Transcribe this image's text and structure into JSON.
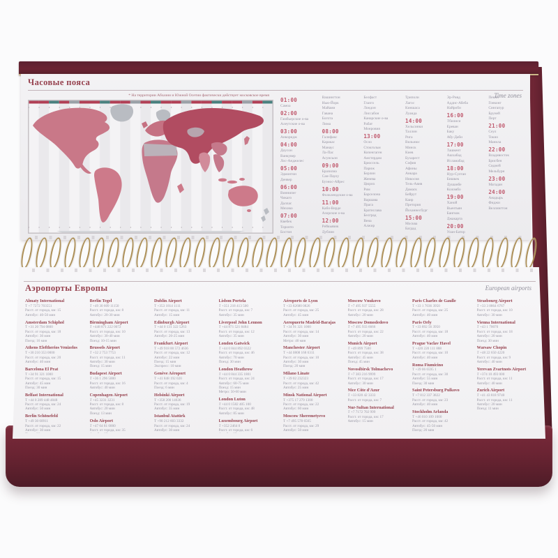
{
  "timezones": {
    "title": "Часовые пояса",
    "title_en": "Time zones",
    "note": "* На территории Абхазии и Южной Осетии фактически действует московское время",
    "columns": [
      [
        "01:00",
        "Самоа",
        "02:00",
        "Гамбьерские о-ва",
        "Алеутские о-ва",
        "03:00",
        "Анкоридж",
        "04:00",
        "Доусон",
        "Ванкувер",
        "Лос-Анджелес",
        "05:00",
        "Эдмонтон",
        "Денвер",
        "06:00",
        "Виннипег",
        "Чикаго",
        "Даллас",
        "Мехико",
        "07:00",
        "Квебек",
        "Торонто",
        "Бостон"
      ],
      [
        "Вашингтон",
        "Нью-Йорк",
        "Майами",
        "Гавана",
        "Богота",
        "Лима",
        "08:00",
        "Галифакс",
        "Каракас",
        "Манаус",
        "Ла-Пас",
        "Асунсьон",
        "09:00",
        "Бразилиа",
        "Сан-Паулу",
        "Буэнос-Айрес",
        "10:00",
        "Фолклендские о-ва",
        "11:00",
        "Кабо-Верде",
        "Азорские о-ва",
        "12:00",
        "Рейкьявик",
        "Дублин"
      ],
      [
        "Белфаст",
        "Глазго",
        "Лондон",
        "Лиссабон",
        "Канарские о-ва",
        "Рабат",
        "Монровия",
        "13:00",
        "Осло",
        "Стокгольм",
        "Копенгаген",
        "Амстердам",
        "Брюссель",
        "Париж",
        "Берлин",
        "Женева",
        "Цюрих",
        "Рим",
        "Барселона",
        "Варшава",
        "Прага",
        "Братислава",
        "Белград",
        "Вена",
        "Алжир"
      ],
      [
        "Триполи",
        "Лагос",
        "Киншаса",
        "Луанда",
        "14:00",
        "Хельсинки",
        "Таллин",
        "Рига",
        "Вильнюс",
        "Минск",
        "Киев",
        "Бухарест",
        "София",
        "Афины",
        "Анкара",
        "Никосия",
        "Тель-Авив",
        "Дамаск",
        "Бейрут",
        "Каир",
        "Претория",
        "Йоханнесбург",
        "15:00",
        "Москва",
        "Багдад"
      ],
      [
        "Эр-Рияд",
        "Аддис-Абеба",
        "Найроби",
        "16:00",
        "Тбилиси",
        "Ереван",
        "Баку",
        "Абу-Даби",
        "17:00",
        "Ташкент",
        "Ашхабад",
        "Исламабад",
        "18:00",
        "Нур-Султан",
        "Бишкек",
        "Душанбе",
        "Коломбо",
        "19:00",
        "Ханой",
        "Вьентьян",
        "Бангкок",
        "Джакарта",
        "20:00",
        "Улан-Батор"
      ],
      [
        "Пекин",
        "Гонконг",
        "Сингапур",
        "Бруней",
        "Перт",
        "21:00",
        "Сеул",
        "Токио",
        "Манила",
        "22:00",
        "Владивосток",
        "Брисбен",
        "Сидней",
        "Мельбурн",
        "23:00",
        "Магадан",
        "24:00",
        "Анадырь",
        "Фиджи",
        "Веллингтон"
      ]
    ]
  },
  "airports": {
    "title": "Аэропорты Европы",
    "title_en": "European airports",
    "columns": [
      [
        {
          "name": "Almaty International",
          "lines": [
            "Т +7 7272 703551",
            "Расст. от города, км: 15",
            "Автобус: 40-50 мин"
          ]
        },
        {
          "name": "Amsterdam Schiphol",
          "lines": [
            "Т +31 20 794 0800",
            "Расст. от города, км: 18",
            "Автобус: 30 мин",
            "Поезд: 16 мин"
          ]
        },
        {
          "name": "Athens Eleftherios Venizelos",
          "lines": [
            "Т +30 210 353 0000",
            "Расст. от города, км: 20",
            "Автобус: 40 мин"
          ]
        },
        {
          "name": "Barcelona El Prat",
          "lines": [
            "Т +34 91 321 1000",
            "Расст. от города, км: 15",
            "Автобус: 45 мин",
            "Поезд: 30 мин"
          ]
        },
        {
          "name": "Belfast International",
          "lines": [
            "Т +44 0 289 448 4848",
            "Расст. от города, км: 24",
            "Автобус: 50 мин"
          ]
        },
        {
          "name": "Berlin Schönefeld",
          "lines": [
            "Т +49 30 60911",
            "Расст. от города, км: 22",
            "Автобус: 30 мин",
            "Поезд: 30 мин"
          ]
        }
      ],
      [
        {
          "name": "Berlin Tegel",
          "lines": [
            "Т +49 30 609 11150",
            "Расст. от города, км: 8",
            "Автобус: 20-30 мин"
          ]
        },
        {
          "name": "Birmingham Airport",
          "lines": [
            "Т +448 871 222 0072",
            "Расст. от города, км: 10",
            "Автобус: 30-40 мин",
            "Поезд: 10-15 мин"
          ]
        },
        {
          "name": "Brussels Airport",
          "lines": [
            "Т +32 2 753 7753",
            "Расст. от города, км: 11",
            "Автобус: 30 мин",
            "Поезд: 15 мин"
          ]
        },
        {
          "name": "Budapest Airport",
          "lines": [
            "Т +36 1 296 5000",
            "Расст. от города, км: 16",
            "Автобус: 40 мин"
          ]
        },
        {
          "name": "Copenhagen Airport",
          "lines": [
            "Т +45 3231 3231",
            "Расст. от города, км: 8",
            "Автобус: 20 мин",
            "Поезд: 13 мин"
          ]
        },
        {
          "name": "Oslo Airport",
          "lines": [
            "Т +47 64 81 0000",
            "Расст. от города, км: 35",
            "Автобус: 35 мин",
            "Поезд: 10 мин"
          ]
        }
      ],
      [
        {
          "name": "Dublin Airport",
          "lines": [
            "Т +353 1814 1111",
            "Расст. от города, км: 11",
            "Автобус: 15 мин"
          ]
        },
        {
          "name": "Edinburgh Airport",
          "lines": [
            "Т +44 0 131 322 5263",
            "Расст. от города, км: 13",
            "Автобус: 20-25 мин"
          ]
        },
        {
          "name": "Frankfurt Airport",
          "lines": [
            "Т +49 918 00 572 4636",
            "Расст. от города, км: 12",
            "Автобус: 22 мин",
            "Поезд: 15 мин",
            "Экспресс: 10 мин"
          ]
        },
        {
          "name": "Genève Aéroport",
          "lines": [
            "Т +41 848 192 020",
            "Расст. от города, км: 4",
            "Поезд: 6 мин"
          ]
        },
        {
          "name": "Helsinki Airport",
          "lines": [
            "Т +358 200 14636",
            "Расст. от города, км: 19",
            "Автобус: 35 мин"
          ]
        },
        {
          "name": "Istanbul Atatürk",
          "lines": [
            "Т +90 212 603 3332",
            "Расст. от города, км: 24",
            "Автобус: 30 мин"
          ]
        }
      ],
      [
        {
          "name": "Lisbon Portela",
          "lines": [
            "Т +351 218 413 500",
            "Расст. от города, км: 7",
            "Автобус: 35 мин"
          ]
        },
        {
          "name": "Liverpool John Lennon",
          "lines": [
            "Т +44 871 521 8484",
            "Расст. от города, км: 12",
            "Автобус: 35 мин"
          ]
        },
        {
          "name": "London Gatwick",
          "lines": [
            "Т +44 0 844 892 0322",
            "Расст. от города, км: 46",
            "Автобус: 70 мин",
            "Поезд: 30 мин"
          ]
        },
        {
          "name": "London Heathrow",
          "lines": [
            "Т +44 0 844 335 1801",
            "Расст. от города, км: 24",
            "Автобус: 60-75 мин",
            "Поезд: 15 мин",
            "Метро: 50-60 мин"
          ]
        },
        {
          "name": "London Luton",
          "lines": [
            "Т +44 0 1582 405 100",
            "Расст. от города, км: 48",
            "Автобус: 85 мин"
          ]
        },
        {
          "name": "Luxembourg Airport",
          "lines": [
            "Т +352 2464 0",
            "Расст. от города, км: 6",
            "Автобус: 25 мин"
          ]
        }
      ],
      [
        {
          "name": "Aéroports de Lyon",
          "lines": [
            "Т +33 82680 0826",
            "Расст. от города, км: 25",
            "Автобус: 45 мин"
          ]
        },
        {
          "name": "Aeropuerto Madrid-Barajas",
          "lines": [
            "Т +34 91 321 1000",
            "Расст. от города, км: 14",
            "Автобус: 30 мин",
            "Метро: 40 мин"
          ]
        },
        {
          "name": "Manchester Airport",
          "lines": [
            "Т +44 0808 168 6311",
            "Расст. от города, км: 10",
            "Автобус: 30 мин",
            "Поезд: 20 мин"
          ]
        },
        {
          "name": "Milano Linate",
          "lines": [
            "Т +39 02 232323",
            "Расст. от города, км: 42",
            "Автобус: 25 мин"
          ]
        },
        {
          "name": "Minsk National Airport",
          "lines": [
            "Т +375 17 279 1300",
            "Расст. от города, км: 22",
            "Автобус: 60 мин"
          ]
        },
        {
          "name": "Moscow Sheremetyevo",
          "lines": [
            "Т +7 495 578 6565",
            "Расст. от города, км: 29",
            "Автобус: 50 мин"
          ]
        }
      ],
      [
        {
          "name": "Moscow Vnukovo",
          "lines": [
            "Т +7 495 937 5555",
            "Расст. от города, км: 28",
            "Автобус: 20 мин"
          ]
        },
        {
          "name": "Moscow Domodedovo",
          "lines": [
            "Т +7 495 933 6666",
            "Расст. от города, км: 22",
            "Автобус: 20 мин"
          ]
        },
        {
          "name": "Munich Airport",
          "lines": [
            "Т +49 899 7500",
            "Расст. от города, км: 38",
            "Автобус: 45 мин",
            "Поезд: 45 мин"
          ]
        },
        {
          "name": "Novosibirsk Tolmachevo",
          "lines": [
            "Т +7 383 216 9999",
            "Расст. от города, км: 17",
            "Автобус: 30 мин"
          ]
        },
        {
          "name": "Nice Côte d'Azur",
          "lines": [
            "Т +33 820 42 3333",
            "Расст. от города, км: 7"
          ]
        },
        {
          "name": "Nur-Sultan International",
          "lines": [
            "Т +7 7172 702 999",
            "Расст. от города, км: 17",
            "Автобус: 15 мин"
          ]
        }
      ],
      [
        {
          "name": "Paris Charles de Gaulle",
          "lines": [
            "Т +33 1 7036 3950",
            "Расст. от города, км: 25",
            "Автобус: 40 мин"
          ]
        },
        {
          "name": "Paris Orly",
          "lines": [
            "Т +33 892 56 3950",
            "Расст. от города, км: 18",
            "Автобус: 40 мин"
          ]
        },
        {
          "name": "Prague Vaclav Havel",
          "lines": [
            "Т +420 220 111 888",
            "Расст. от города, км: 10",
            "Автобус: 40 мин"
          ]
        },
        {
          "name": "Roma Fiumicino",
          "lines": [
            "Т +39 06 6595 1",
            "Расст. от города, км: 30",
            "Автобус: 55 мин",
            "Поезд: 30 мин"
          ]
        },
        {
          "name": "Saint Petersburg Pulkovo",
          "lines": [
            "Т +7 812 337 3822",
            "Расст. от города, км: 23",
            "Автобус: 40 мин"
          ]
        },
        {
          "name": "Stockholm Arlanda",
          "lines": [
            "Т +46 010 109 1000",
            "Расст. от города, км: 42",
            "Автобус: 45-50 мин",
            "Поезд: 20 мин"
          ]
        }
      ],
      [
        {
          "name": "Strasbourg Airport",
          "lines": [
            "Т +33 3 8864 6767",
            "Расст. от города, км: 10",
            "Автобус: 30 мин"
          ]
        },
        {
          "name": "Vienna International",
          "lines": [
            "Т +43 1 70070",
            "Расст. от города, км: 18",
            "Автобус: 20 мин",
            "Поезд: 30 мин"
          ]
        },
        {
          "name": "Warsaw Chopin",
          "lines": [
            "Т +48 22 650 4220",
            "Расст. от города, км: 9",
            "Автобус: 40 мин"
          ]
        },
        {
          "name": "Yerevan Zvartnots Airport",
          "lines": [
            "Т +374 10 493 000",
            "Расст. от города, км: 11",
            "Автобус: 40 мин"
          ]
        },
        {
          "name": "Zurich Airport",
          "lines": [
            "Т +41 43 818 9740",
            "Расст. от города, км: 11",
            "Автобус: 20 мин",
            "Поезд: 11 мин"
          ]
        }
      ]
    ]
  },
  "colors": {
    "cover": "#6b2433",
    "accent": "#96424f",
    "time": "#c05a6e",
    "wire": "#ad9058",
    "gold": "#cdb888"
  }
}
